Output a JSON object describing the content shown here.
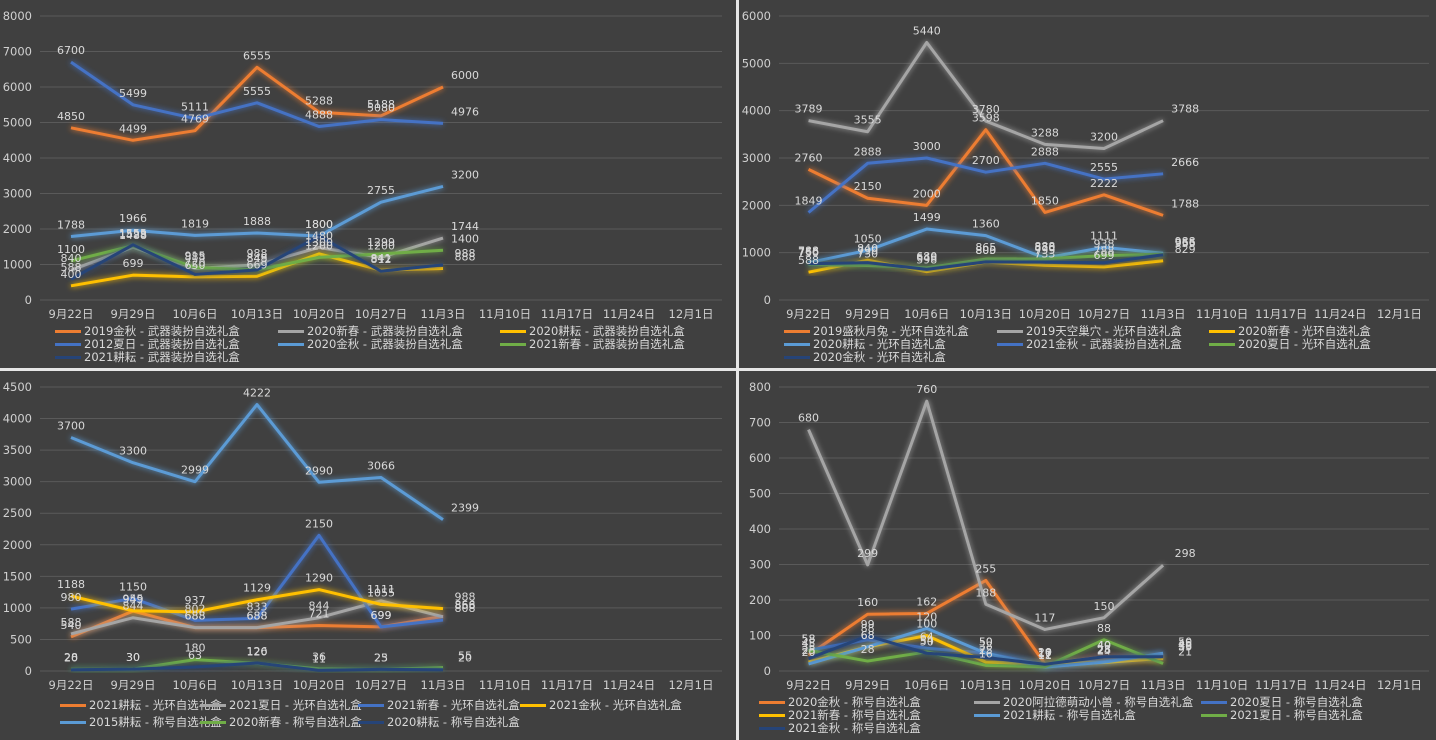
{
  "chart_data": [
    {
      "type": "line",
      "title": "",
      "xlabel": "",
      "ylabel": "",
      "categories": [
        "9月22日",
        "9月29日",
        "10月6日",
        "10月13日",
        "10月20日",
        "10月27日",
        "11月3日",
        "11月10日",
        "11月17日",
        "11月24日",
        "12月1日"
      ],
      "yticks": [
        0,
        1000,
        2000,
        3000,
        4000,
        5000,
        6000,
        7000,
        8000
      ],
      "ylim": [
        0,
        8000
      ],
      "grid": true,
      "legend_position": "bottom",
      "series": [
        {
          "name": "2019金秋 - 武器装扮自选礼盒",
          "color": "#ed7d31",
          "values": [
            4850,
            4499,
            4769,
            6555,
            5288,
            5188,
            6000
          ]
        },
        {
          "name": "2020新春 - 武器装扮自选礼盒",
          "color": "#a5a5a5",
          "values": [
            840,
            1488,
            888,
            988,
            1480,
            1200,
            1744
          ]
        },
        {
          "name": "2020耕耘 - 武器装扮自选礼盒",
          "color": "#ffc000",
          "values": [
            400,
            699,
            650,
            669,
            1300,
            841,
            888
          ]
        },
        {
          "name": "2012夏日 - 武器装扮自选礼盒",
          "color": "#4472c4",
          "values": [
            6700,
            5499,
            5111,
            5555,
            4888,
            5080,
            4976
          ]
        },
        {
          "name": "2020金秋 - 武器装扮自选礼盒",
          "color": "#5b9bd5",
          "values": [
            1788,
            1966,
            1819,
            1888,
            1800,
            2755,
            3200
          ]
        },
        {
          "name": "2021新春 - 武器装扮自选礼盒",
          "color": "#70ad47",
          "values": [
            1100,
            1528,
            915,
            849,
            1200,
            1299,
            1400
          ]
        },
        {
          "name": "2021耕耘 - 武器装扮自选礼盒",
          "color": "#264478",
          "values": [
            588,
            1555,
            720,
            848,
            1800,
            812,
            988
          ]
        }
      ]
    },
    {
      "type": "line",
      "title": "",
      "xlabel": "",
      "ylabel": "",
      "categories": [
        "9月22日",
        "9月29日",
        "10月6日",
        "10月13日",
        "10月20日",
        "10月27日",
        "11月3日",
        "11月10日",
        "11月17日",
        "11月24日",
        "12月1日"
      ],
      "yticks": [
        0,
        1000,
        2000,
        3000,
        4000,
        5000,
        6000
      ],
      "ylim": [
        0,
        6000
      ],
      "grid": true,
      "legend_position": "bottom",
      "series": [
        {
          "name": "2019盛秋月兔 - 光环自选礼盒",
          "color": "#ed7d31",
          "values": [
            2760,
            2150,
            2000,
            3598,
            1850,
            2222,
            1788
          ]
        },
        {
          "name": "2019天空巢穴 - 光环自选礼盒",
          "color": "#a5a5a5",
          "values": [
            3789,
            3555,
            5440,
            3780,
            3288,
            3200,
            3788
          ]
        },
        {
          "name": "2020新春 - 光环自选礼盒",
          "color": "#ffc000",
          "values": [
            588,
            840,
            598,
            800,
            733,
            699,
            829
          ]
        },
        {
          "name": "2020耕耘 - 光环自选礼盒",
          "color": "#5b9bd5",
          "values": [
            788,
            1050,
            1499,
            1360,
            888,
            1111,
            988
          ]
        },
        {
          "name": "2021金秋 - 武器装扮自选礼盒",
          "color": "#4472c4",
          "values": [
            1849,
            2888,
            3000,
            2700,
            2888,
            2555,
            2666
          ]
        },
        {
          "name": "2020夏日 - 光环自选礼盒",
          "color": "#70ad47",
          "values": [
            750,
            730,
            680,
            865,
            870,
            938,
            966
          ]
        },
        {
          "name": "2020金秋 - 光环自选礼盒",
          "color": "#264478",
          "values": [
            766,
            790,
            648,
            805,
            799,
            788,
            955
          ]
        }
      ]
    },
    {
      "type": "line",
      "title": "",
      "xlabel": "",
      "ylabel": "",
      "categories": [
        "9月22日",
        "9月29日",
        "10月6日",
        "10月13日",
        "10月20日",
        "10月27日",
        "11月3日",
        "11月10日",
        "11月17日",
        "11月24日",
        "12月1日"
      ],
      "yticks": [
        0,
        500,
        1000,
        1500,
        2000,
        2500,
        3000,
        3500,
        4000,
        4500
      ],
      "ylim": [
        0,
        4500
      ],
      "grid": true,
      "legend_position": "bottom",
      "series": [
        {
          "name": "2021耕耘 - 光环自选礼盒",
          "color": "#ed7d31",
          "values": [
            540,
            949,
            688,
            688,
            721,
            699,
            866
          ]
        },
        {
          "name": "2021夏日 - 光环自选礼盒",
          "color": "#a5a5a5",
          "values": [
            588,
            844,
            688,
            688,
            844,
            1111,
            858
          ]
        },
        {
          "name": "2021新春 - 光环自选礼盒",
          "color": "#4472c4",
          "values": [
            980,
            1150,
            802,
            833,
            2150,
            699,
            808
          ]
        },
        {
          "name": "2021金秋 - 光环自选礼盒",
          "color": "#ffc000",
          "values": [
            1188,
            955,
            937,
            1129,
            1290,
            1055,
            988
          ]
        },
        {
          "name": "2015耕耘 - 称号自选礼盒",
          "color": "#5b9bd5",
          "values": [
            3700,
            3300,
            2999,
            4222,
            2990,
            3066,
            2399
          ]
        },
        {
          "name": "2020新春 - 称号自选礼盒",
          "color": "#70ad47",
          "values": [
            28,
            30,
            180,
            120,
            36,
            23,
            55
          ]
        },
        {
          "name": "2020耕耘 - 称号自选礼盒",
          "color": "#264478",
          "values": [
            20,
            30,
            63,
            126,
            11,
            25,
            20
          ]
        }
      ]
    },
    {
      "type": "line",
      "title": "",
      "xlabel": "",
      "ylabel": "",
      "categories": [
        "9月22日",
        "9月29日",
        "10月6日",
        "10月13日",
        "10月20日",
        "10月27日",
        "11月3日",
        "11月10日",
        "11月17日",
        "11月24日",
        "12月1日"
      ],
      "yticks": [
        0,
        100,
        200,
        300,
        400,
        500,
        600,
        700,
        800
      ],
      "ylim": [
        0,
        800
      ],
      "grid": true,
      "legend_position": "bottom",
      "series": [
        {
          "name": "2020金秋 - 称号自选礼盒",
          "color": "#ed7d31",
          "values": [
            45,
            160,
            162,
            255,
            20,
            40,
            35
          ]
        },
        {
          "name": "2020阿拉德萌动小兽 - 称号自选礼盒",
          "color": "#a5a5a5",
          "values": [
            680,
            299,
            760,
            188,
            117,
            150,
            298
          ]
        },
        {
          "name": "2020夏日 - 称号自选礼盒",
          "color": "#4472c4",
          "values": [
            58,
            88,
            64,
            50,
            17,
            28,
            45
          ]
        },
        {
          "name": "2021新春 - 称号自选礼盒",
          "color": "#ffc000",
          "values": [
            25,
            68,
            100,
            25,
            20,
            24,
            36
          ]
        },
        {
          "name": "2021耕耘 - 称号自选礼盒",
          "color": "#5b9bd5",
          "values": [
            20,
            68,
            120,
            50,
            11,
            25,
            50
          ]
        },
        {
          "name": "2021夏日 - 称号自选礼盒",
          "color": "#70ad47",
          "values": [
            58,
            28,
            54,
            16,
            12,
            88,
            21
          ]
        },
        {
          "name": "2021金秋 - 称号自选礼盒",
          "color": "#264478",
          "values": [
            35,
            99,
            50,
            38,
            19,
            40,
            40
          ]
        }
      ]
    }
  ]
}
